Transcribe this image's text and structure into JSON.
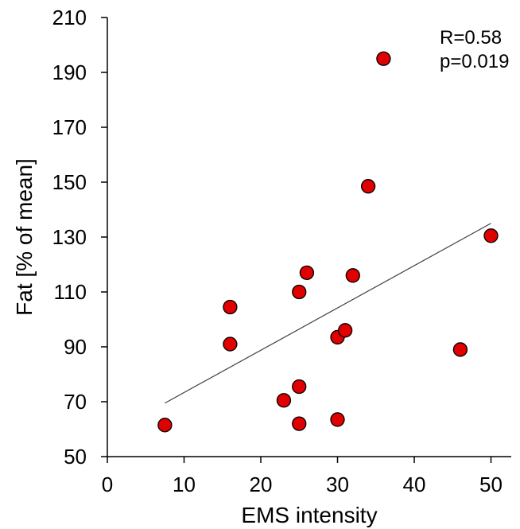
{
  "chart_data": {
    "type": "scatter",
    "xlabel": "EMS intensity",
    "ylabel": "Fat [% of mean]",
    "xlim": [
      0,
      55
    ],
    "ylim": [
      50,
      210
    ],
    "x_ticks": [
      "0",
      "10",
      "20",
      "30",
      "40",
      "50"
    ],
    "y_ticks": [
      "50",
      "70",
      "90",
      "110",
      "130",
      "150",
      "170",
      "190",
      "210"
    ],
    "grid": false,
    "annotations": [
      "R=0.58",
      "p=0.019"
    ],
    "marker_color": "#e00000",
    "marker_edge_color": "#000000",
    "trendline_color": "#404040",
    "series": [
      {
        "points": [
          {
            "x": 7.5,
            "y": 61.5
          },
          {
            "x": 16,
            "y": 104.5
          },
          {
            "x": 16,
            "y": 91
          },
          {
            "x": 23,
            "y": 70.5
          },
          {
            "x": 25,
            "y": 75.5
          },
          {
            "x": 25,
            "y": 62
          },
          {
            "x": 25,
            "y": 110
          },
          {
            "x": 26,
            "y": 117
          },
          {
            "x": 30,
            "y": 63.5
          },
          {
            "x": 30,
            "y": 93.5
          },
          {
            "x": 31,
            "y": 96
          },
          {
            "x": 32,
            "y": 116
          },
          {
            "x": 34,
            "y": 148.5
          },
          {
            "x": 36,
            "y": 195
          },
          {
            "x": 46,
            "y": 89
          },
          {
            "x": 50,
            "y": 130.5
          }
        ]
      }
    ],
    "trendline": {
      "x": [
        7.5,
        50
      ],
      "y": [
        69.5,
        135
      ]
    }
  }
}
